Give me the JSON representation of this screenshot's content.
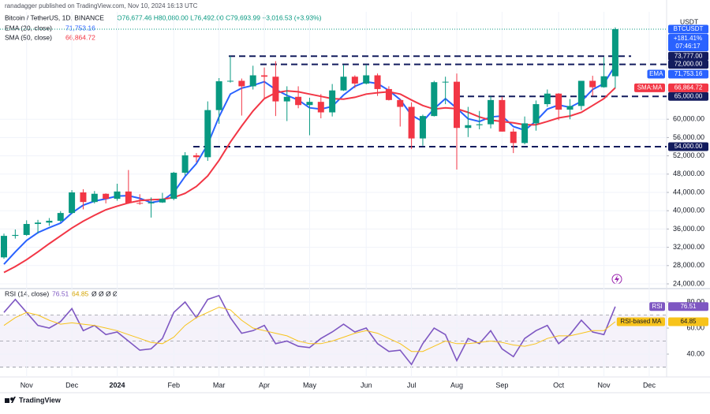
{
  "header": {
    "published": "ranadagger published on TradingView.com, Nov 10, 2024 16:13 UTC",
    "symbol": "Bitcoin / TetherUS, 1D, BINANCE",
    "ohlc": "O76,677.46 H80,080.00 L76,492.00 C79,693.99 +3,016.53 (+3.93%)",
    "brand": "TradingView"
  },
  "chart_data": [
    {
      "type": "candlestick",
      "currency": "USDT",
      "categories": [
        null,
        null,
        "Nov",
        null,
        null,
        null,
        "Dec",
        null,
        null,
        null,
        "2024",
        null,
        null,
        null,
        null,
        "Feb",
        null,
        null,
        null,
        "Mar",
        null,
        null,
        null,
        "Apr",
        null,
        null,
        null,
        "May",
        null,
        null,
        null,
        null,
        "Jun",
        null,
        null,
        null,
        "Jul",
        null,
        null,
        null,
        "Aug",
        null,
        null,
        null,
        "Sep",
        null,
        null,
        null,
        null,
        "Oct",
        null,
        null,
        null,
        "Nov",
        null,
        null,
        null,
        "Dec"
      ],
      "open": [
        29800,
        34500,
        34700,
        37100,
        37400,
        37800,
        39500,
        44000,
        41900,
        43700,
        42600,
        44200,
        41700,
        41600,
        41800,
        42600,
        48300,
        52100,
        51700,
        62000,
        68300,
        68400,
        67200,
        69600,
        69300,
        63900,
        64900,
        63100,
        63800,
        61500,
        66300,
        69300,
        67800,
        69600,
        66600,
        64200,
        62700,
        55800,
        60700,
        68100,
        68200,
        58100,
        58700,
        58900,
        64200,
        57300,
        54800,
        59100,
        63300,
        65600,
        62100,
        62900,
        68400,
        67000,
        69400,
        null,
        null,
        null
      ],
      "high": [
        35000,
        35900,
        37900,
        38000,
        38400,
        39900,
        44500,
        44700,
        44300,
        43800,
        45900,
        48900,
        43600,
        42900,
        43900,
        48500,
        52800,
        52600,
        63900,
        69000,
        73777,
        68900,
        71700,
        71300,
        72700,
        67200,
        67200,
        64700,
        65500,
        67700,
        71900,
        69600,
        71900,
        70000,
        67200,
        64500,
        63700,
        61000,
        68400,
        69300,
        70000,
        62700,
        61800,
        65000,
        64900,
        58000,
        60600,
        64100,
        66500,
        65700,
        64400,
        68400,
        69500,
        73600,
        80080,
        null,
        null,
        null
      ],
      "low": [
        29500,
        33900,
        34500,
        35000,
        36700,
        37500,
        39300,
        40300,
        41600,
        41600,
        42200,
        41500,
        41300,
        38500,
        41700,
        42300,
        47700,
        50600,
        50900,
        59000,
        68000,
        60800,
        66500,
        64500,
        60700,
        59600,
        62400,
        56500,
        60200,
        60600,
        66200,
        66800,
        67600,
        65100,
        64100,
        58400,
        53500,
        54200,
        60600,
        63300,
        49000,
        56100,
        57800,
        58000,
        57300,
        52600,
        54500,
        57500,
        62700,
        59800,
        60000,
        62000,
        65100,
        66900,
        66800,
        null,
        null,
        null
      ],
      "close": [
        34500,
        34700,
        37100,
        37400,
        37800,
        39500,
        44000,
        41900,
        43700,
        42600,
        44200,
        41700,
        41600,
        41800,
        42600,
        48300,
        52100,
        51700,
        62000,
        68300,
        68400,
        67200,
        69600,
        69300,
        63900,
        64900,
        63100,
        63800,
        61500,
        66300,
        69300,
        67800,
        69600,
        66600,
        64200,
        62700,
        55800,
        60700,
        68100,
        68200,
        58100,
        58700,
        58900,
        64200,
        57300,
        54800,
        59100,
        63300,
        65600,
        62100,
        62900,
        68400,
        67000,
        69400,
        79693.99,
        null,
        null,
        null
      ],
      "up_color": "#089981",
      "down_color": "#f23645",
      "last_price": {
        "name": "BTCUSDT",
        "change": "+181.41%",
        "countdown": "07:46:17",
        "color": "#2962ff"
      },
      "series": [
        {
          "name": "EMA (20, close)",
          "badge": "EMA",
          "last": "71,753.16",
          "color": "#2962ff",
          "values": [
            28300,
            31000,
            33500,
            35200,
            36300,
            37300,
            39500,
            41200,
            42100,
            42600,
            43200,
            43300,
            42700,
            41800,
            42200,
            44000,
            47500,
            50300,
            54500,
            60500,
            65500,
            66800,
            67400,
            68200,
            66500,
            65200,
            64200,
            62500,
            62200,
            62800,
            65300,
            67200,
            68200,
            67800,
            66300,
            64300,
            60900,
            59500,
            62300,
            64500,
            62400,
            60100,
            59500,
            60500,
            60700,
            58400,
            57600,
            59600,
            62200,
            63100,
            62600,
            63900,
            66500,
            67800,
            71753.16,
            null,
            null,
            null
          ]
        },
        {
          "name": "SMA (50, close)",
          "badge": "SMA:MA",
          "last": "66,864.72",
          "color": "#f23645",
          "values": [
            26500,
            27800,
            29300,
            31000,
            32800,
            34500,
            36200,
            37700,
            39000,
            40200,
            41000,
            41700,
            42200,
            42400,
            42500,
            42900,
            43800,
            45300,
            47600,
            51000,
            55000,
            58500,
            61800,
            64500,
            65800,
            66200,
            66000,
            65500,
            65000,
            64500,
            64400,
            64800,
            65500,
            65800,
            66000,
            65500,
            64200,
            63000,
            62200,
            62500,
            62300,
            61500,
            60500,
            59800,
            59500,
            59200,
            58800,
            58800,
            59500,
            60300,
            60700,
            61500,
            63000,
            64500,
            66864.72,
            null,
            null,
            null
          ]
        }
      ],
      "levels": [
        {
          "value": 73777,
          "label": "73,777.00"
        },
        {
          "value": 72000,
          "label": "72,000.00"
        },
        {
          "value": 65000,
          "label": "65,000.00"
        },
        {
          "value": 54000,
          "label": "54,000.00"
        }
      ],
      "level_color": "#131c5e",
      "ylim": [
        23138,
        83483
      ],
      "yticks": [
        {
          "value": 24000,
          "label": "24,000.00"
        },
        {
          "value": 28000,
          "label": "28,000.00"
        },
        {
          "value": 32000,
          "label": "32,000.00"
        },
        {
          "value": 36000,
          "label": "36,000.00"
        },
        {
          "value": 40000,
          "label": "40,000.00"
        },
        {
          "value": 44000,
          "label": "44,000.00"
        },
        {
          "value": 48000,
          "label": "48,000.00"
        },
        {
          "value": 52000,
          "label": "52,000.00"
        },
        {
          "value": 56000,
          "label": "56,000.00"
        },
        {
          "value": 60000,
          "label": "60,000.00"
        }
      ],
      "grid": true
    },
    {
      "type": "line",
      "title": "RSI (14, close)",
      "extra": "Ø Ø Ø Ø",
      "series": [
        {
          "name": "RSI",
          "last": "76.51",
          "color": "#7e57c2",
          "values": [
            72,
            82,
            72,
            62,
            60,
            65,
            75,
            58,
            62,
            55,
            57,
            50,
            43,
            44,
            52,
            72,
            80,
            68,
            82,
            85,
            68,
            56,
            58,
            62,
            48,
            50,
            46,
            45,
            52,
            57,
            63,
            57,
            60,
            48,
            42,
            43,
            32,
            48,
            60,
            55,
            35,
            52,
            48,
            58,
            44,
            38,
            52,
            58,
            62,
            48,
            55,
            66,
            57,
            55,
            76.51,
            null,
            null,
            null
          ]
        },
        {
          "name": "RSI-based MA",
          "last": "64.85",
          "color": "#f7c31b",
          "values": [
            62,
            68,
            72,
            70,
            66,
            63,
            64,
            63,
            62,
            60,
            58,
            55,
            52,
            49,
            48,
            53,
            62,
            68,
            72,
            76,
            74,
            66,
            60,
            58,
            56,
            54,
            50,
            48,
            48,
            50,
            53,
            56,
            58,
            56,
            52,
            48,
            42,
            42,
            46,
            50,
            48,
            48,
            49,
            50,
            49,
            47,
            46,
            48,
            52,
            54,
            54,
            56,
            58,
            58,
            64.85,
            null,
            null,
            null
          ]
        }
      ],
      "levels": [
        70,
        50,
        30
      ],
      "ylim": [
        27.3,
        89.1
      ],
      "yticks": [
        {
          "value": 80,
          "label": "80.00"
        },
        {
          "value": 60,
          "label": "60.00"
        },
        {
          "value": 40,
          "label": "40.00"
        }
      ],
      "grid": true
    }
  ]
}
